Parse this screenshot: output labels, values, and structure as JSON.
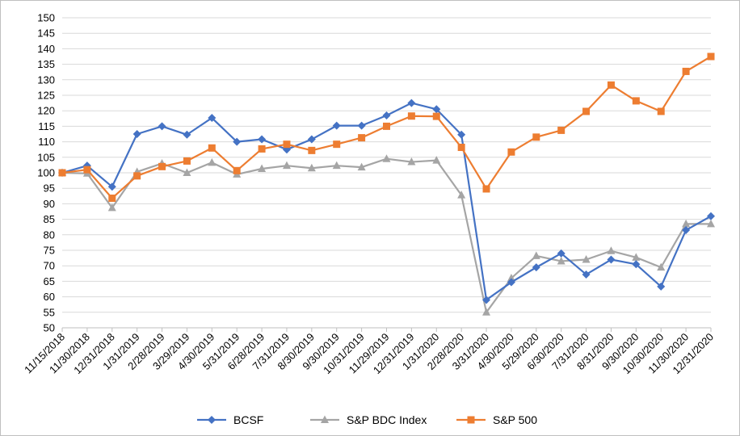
{
  "chart_data": {
    "type": "line",
    "title": "",
    "xlabel": "",
    "ylabel": "",
    "ylim": [
      50,
      150
    ],
    "yticks": [
      50,
      55,
      60,
      65,
      70,
      75,
      80,
      85,
      90,
      95,
      100,
      105,
      110,
      115,
      120,
      125,
      130,
      135,
      140,
      145,
      150
    ],
    "grid": "horizontal",
    "legend": "bottom",
    "categories": [
      "11/15/2018",
      "11/30/2018",
      "12/31/2018",
      "1/31/2019",
      "2/28/2019",
      "3/29/2019",
      "4/30/2019",
      "5/31/2019",
      "6/28/2019",
      "7/31/2019",
      "8/30/2019",
      "9/30/2019",
      "10/31/2019",
      "11/29/2019",
      "12/31/2019",
      "1/31/2020",
      "2/28/2020",
      "3/31/2020",
      "4/30/2020",
      "5/29/2020",
      "6/30/2020",
      "7/31/2020",
      "8/31/2020",
      "9/30/2020",
      "10/30/2020",
      "11/30/2020",
      "12/31/2020"
    ],
    "series": [
      {
        "name": "BCSF",
        "color": "#4472c4",
        "marker": "diamond",
        "values": [
          100,
          102.3,
          95.5,
          112.5,
          115.0,
          112.3,
          117.7,
          110.0,
          110.8,
          107.5,
          110.8,
          115.2,
          115.2,
          118.5,
          122.5,
          120.5,
          112.3,
          59.0,
          64.7,
          69.5,
          74.0,
          67.2,
          72.0,
          70.5,
          63.3,
          81.5,
          86.0
        ]
      },
      {
        "name": "S&P BDC Index",
        "color": "#a5a5a5",
        "marker": "triangle",
        "values": [
          100,
          99.8,
          88.7,
          100.3,
          103.0,
          100.0,
          103.3,
          99.5,
          101.3,
          102.3,
          101.5,
          102.3,
          101.8,
          104.5,
          103.5,
          104.0,
          92.8,
          55.0,
          66.0,
          73.2,
          71.5,
          72.0,
          74.8,
          72.7,
          69.5,
          83.5,
          83.5
        ]
      },
      {
        "name": "S&P 500",
        "color": "#ed7d31",
        "marker": "square",
        "values": [
          100,
          101.0,
          91.8,
          99.0,
          102.0,
          103.8,
          108.0,
          100.7,
          107.7,
          109.2,
          107.2,
          109.2,
          111.3,
          115.0,
          118.3,
          118.2,
          108.2,
          94.8,
          106.7,
          111.5,
          113.7,
          119.8,
          128.3,
          123.2,
          119.8,
          132.7,
          137.5
        ]
      }
    ]
  }
}
